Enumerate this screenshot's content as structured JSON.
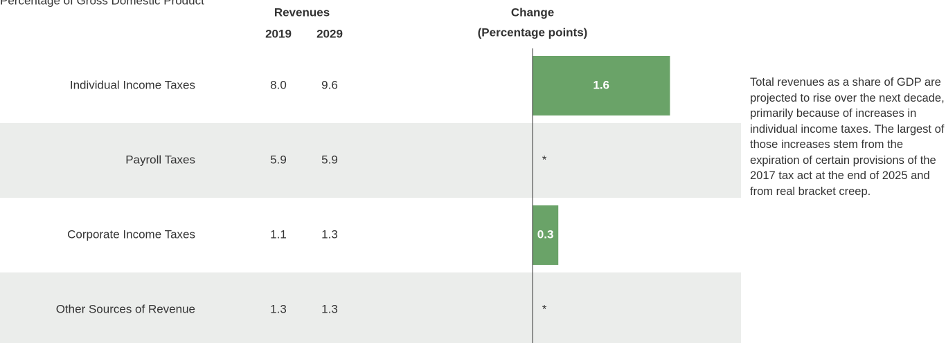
{
  "chart_data": {
    "type": "bar",
    "title": "Percentage of Gross Domestic Product",
    "revenues_header": "Revenues",
    "year_headers": [
      "2019",
      "2029"
    ],
    "change_header": "Change",
    "change_subheader": "(Percentage points)",
    "categories": [
      "Individual Income Taxes",
      "Payroll Taxes",
      "Corporate Income Taxes",
      "Other Sources of Revenue"
    ],
    "revenues_2019": [
      "8.0",
      "5.9",
      "1.1",
      "1.3"
    ],
    "revenues_2029": [
      "9.6",
      "5.9",
      "1.3",
      "1.3"
    ],
    "values": [
      1.6,
      0,
      0.3,
      0
    ],
    "value_labels": [
      "1.6",
      "*",
      "0.3",
      "*"
    ],
    "color": "#6aa368",
    "annotation": "Total revenues as a share of GDP are projected to rise over the next decade, primarily because of increases in individual income taxes. The largest of those increases stem from the expiration of certain provisions of the 2017 tax act at the end of 2025 and from real bracket creep."
  }
}
